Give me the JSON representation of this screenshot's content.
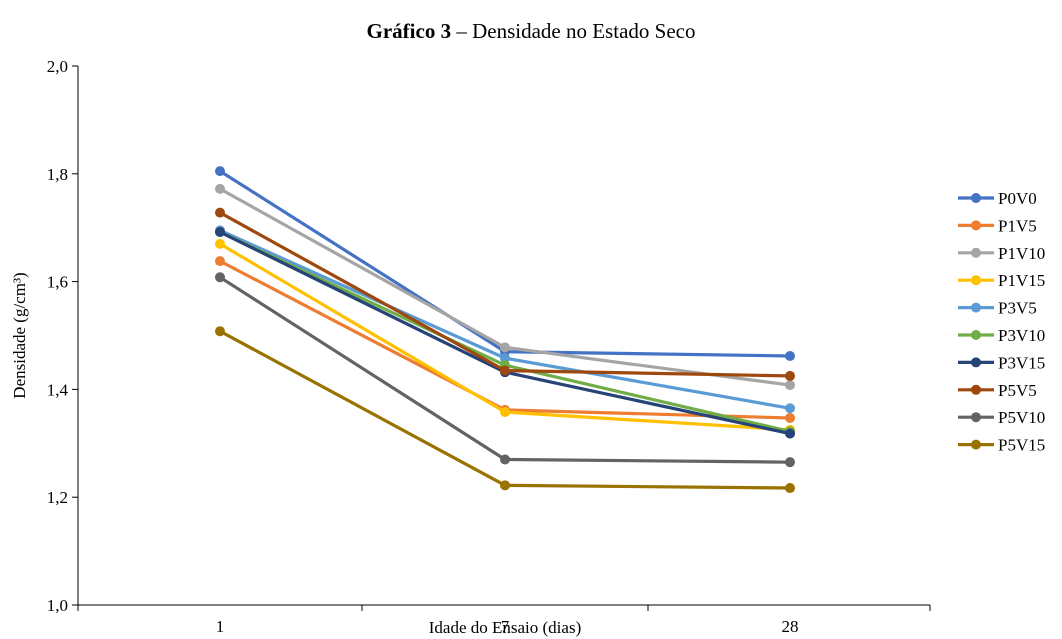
{
  "title": {
    "bold": "Gráfico 3",
    "rest": " – Densidade no Estado Seco"
  },
  "chart_data": {
    "type": "line",
    "title": "Gráfico 3 – Densidade no Estado Seco",
    "xlabel": "Idade do Ensaio (dias)",
    "ylabel": "Densidade (g/cm³)",
    "categories": [
      "1",
      "7",
      "28"
    ],
    "ylim": [
      1.0,
      2.0
    ],
    "yticks": [
      "1,0",
      "1,2",
      "1,4",
      "1,6",
      "1,8",
      "2,0"
    ],
    "ytick_values": [
      1.0,
      1.2,
      1.4,
      1.6,
      1.8,
      2.0
    ],
    "grid": false,
    "legend": "right",
    "series": [
      {
        "name": "P0V0",
        "color": "#4472C4",
        "values": [
          1.805,
          1.47,
          1.462
        ]
      },
      {
        "name": "P1V5",
        "color": "#ED7D31",
        "values": [
          1.638,
          1.362,
          1.347
        ]
      },
      {
        "name": "P1V10",
        "color": "#A5A5A5",
        "values": [
          1.772,
          1.478,
          1.408
        ]
      },
      {
        "name": "P1V15",
        "color": "#FFC000",
        "values": [
          1.67,
          1.358,
          1.325
        ]
      },
      {
        "name": "P3V5",
        "color": "#5B9BD5",
        "values": [
          1.695,
          1.458,
          1.365
        ]
      },
      {
        "name": "P3V10",
        "color": "#70AD47",
        "values": [
          1.692,
          1.445,
          1.322
        ]
      },
      {
        "name": "P3V15",
        "color": "#264478",
        "values": [
          1.692,
          1.432,
          1.318
        ]
      },
      {
        "name": "P5V5",
        "color": "#9E480E",
        "values": [
          1.728,
          1.435,
          1.425
        ]
      },
      {
        "name": "P5V10",
        "color": "#636363",
        "values": [
          1.608,
          1.27,
          1.265
        ]
      },
      {
        "name": "P5V15",
        "color": "#997300",
        "values": [
          1.508,
          1.222,
          1.217
        ]
      }
    ]
  }
}
